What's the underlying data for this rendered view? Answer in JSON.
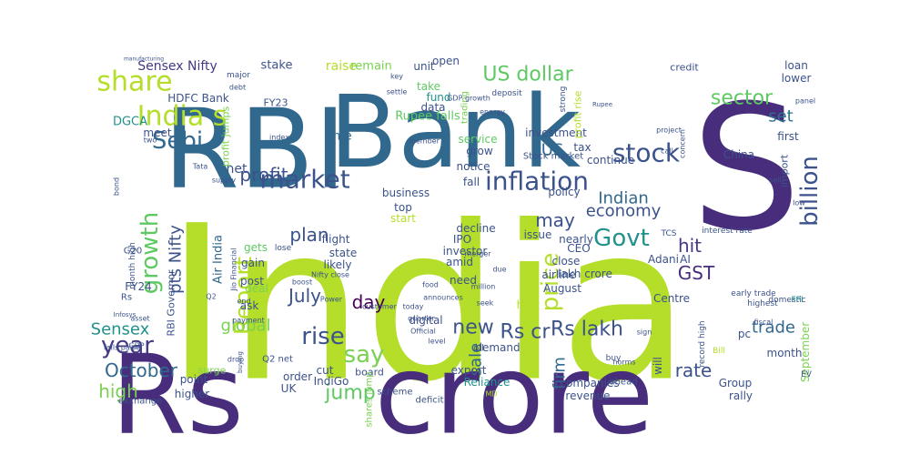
{
  "wordcloud": {
    "words": [
      {
        "text": "India",
        "color": "#b5de2b"
      },
      {
        "text": "S",
        "color": "#472d7b"
      },
      {
        "text": "crore",
        "color": "#472d7b"
      },
      {
        "text": "Rs",
        "color": "#472d7b"
      },
      {
        "text": "RBI",
        "color": "#31688e"
      },
      {
        "text": "Bank",
        "color": "#31688e"
      },
      {
        "text": "India s",
        "color": "#b5de2b"
      },
      {
        "text": "share",
        "color": "#b5de2b"
      },
      {
        "text": "market",
        "color": "#3b528b"
      },
      {
        "text": "stock",
        "color": "#3b528b"
      },
      {
        "text": "inflation",
        "color": "#3b528b"
      },
      {
        "text": "Sebi",
        "color": "#31688e"
      },
      {
        "text": "Report",
        "color": "#b5de2b"
      },
      {
        "text": "year",
        "color": "#443983"
      },
      {
        "text": "say",
        "color": "#7ad151"
      },
      {
        "text": "rise",
        "color": "#3b528b"
      },
      {
        "text": "Govt",
        "color": "#21918c"
      },
      {
        "text": "growth",
        "color": "#5ec962"
      },
      {
        "text": "price",
        "color": "#b5de2b"
      },
      {
        "text": "billion",
        "color": "#3b528b"
      },
      {
        "text": "US dollar",
        "color": "#5ec962"
      },
      {
        "text": "sector",
        "color": "#5ec962"
      },
      {
        "text": "profit",
        "color": "#3b528b"
      },
      {
        "text": "new",
        "color": "#3b528b"
      },
      {
        "text": "Rs cr",
        "color": "#3b528b"
      },
      {
        "text": "Rs lakh",
        "color": "#3b528b"
      },
      {
        "text": "jump",
        "color": "#5ec962"
      },
      {
        "text": "plan",
        "color": "#3b528b"
      },
      {
        "text": "July",
        "color": "#3b528b"
      },
      {
        "text": "day",
        "color": "#440154"
      },
      {
        "text": "global",
        "color": "#7ad151"
      },
      {
        "text": "Sensex",
        "color": "#21918c"
      },
      {
        "text": "October",
        "color": "#31688e"
      },
      {
        "text": "high",
        "color": "#7ad151"
      },
      {
        "text": "rate",
        "color": "#3b528b"
      },
      {
        "text": "trade",
        "color": "#31688e"
      },
      {
        "text": "may",
        "color": "#3b528b"
      },
      {
        "text": "economy",
        "color": "#3b528b"
      },
      {
        "text": "Indian",
        "color": "#31688e"
      },
      {
        "text": "hit",
        "color": "#443983"
      },
      {
        "text": "GST",
        "color": "#472d7b"
      },
      {
        "text": "pts Nifty",
        "color": "#3b528b"
      },
      {
        "text": "set",
        "color": "#2c728e"
      },
      {
        "text": "sale",
        "color": "#31688e"
      },
      {
        "text": "firm",
        "color": "#31688e"
      },
      {
        "text": "US",
        "color": "#31688e"
      },
      {
        "text": "net",
        "color": "#3b528b"
      },
      {
        "text": "Sensex Nifty",
        "color": "#443983"
      },
      {
        "text": "HDFC Bank",
        "color": "#3b528b"
      },
      {
        "text": "stake",
        "color": "#3b528b"
      },
      {
        "text": "raise",
        "color": "#b5de2b"
      },
      {
        "text": "remain",
        "color": "#7ad151"
      },
      {
        "text": "unit",
        "color": "#3b528b"
      },
      {
        "text": "open",
        "color": "#3b528b"
      },
      {
        "text": "credit",
        "color": "#3b528b"
      },
      {
        "text": "loan",
        "color": "#3b528b"
      },
      {
        "text": "lower",
        "color": "#3b528b"
      },
      {
        "text": "first",
        "color": "#3b528b"
      },
      {
        "text": "time",
        "color": "#31688e"
      },
      {
        "text": "fund",
        "color": "#21918c"
      },
      {
        "text": "data",
        "color": "#3b528b"
      },
      {
        "text": "take",
        "color": "#5ec962"
      },
      {
        "text": "service",
        "color": "#5ec962"
      },
      {
        "text": "investment",
        "color": "#3b528b"
      },
      {
        "text": "tax",
        "color": "#3b528b"
      },
      {
        "text": "continue",
        "color": "#3b528b"
      },
      {
        "text": "Rupee falls",
        "color": "#5ec962"
      },
      {
        "text": "grow",
        "color": "#3b528b"
      },
      {
        "text": "notice",
        "color": "#3b528b"
      },
      {
        "text": "fall",
        "color": "#3b528b"
      },
      {
        "text": "business",
        "color": "#3b528b"
      },
      {
        "text": "policy",
        "color": "#3b528b"
      },
      {
        "text": "China",
        "color": "#3b528b"
      },
      {
        "text": "import",
        "color": "#3b528b"
      },
      {
        "text": "meet",
        "color": "#3b528b"
      },
      {
        "text": "DGCA",
        "color": "#21918c"
      },
      {
        "text": "FY23",
        "color": "#3b528b"
      },
      {
        "text": "profit jumps",
        "color": "#7ad151"
      },
      {
        "text": "Air India",
        "color": "#31688e"
      },
      {
        "text": "RBI Governor",
        "color": "#3b528b"
      },
      {
        "text": "FY24",
        "color": "#3b528b"
      },
      {
        "text": "gets",
        "color": "#5ec962"
      },
      {
        "text": "gain",
        "color": "#3b528b"
      },
      {
        "text": "post",
        "color": "#3b528b"
      },
      {
        "text": "ask",
        "color": "#3b528b"
      },
      {
        "text": "deal",
        "color": "#7ad151"
      },
      {
        "text": "top",
        "color": "#3b528b"
      },
      {
        "text": "start",
        "color": "#b5de2b"
      },
      {
        "text": "decline",
        "color": "#3b528b"
      },
      {
        "text": "IPO",
        "color": "#3b528b"
      },
      {
        "text": "investor",
        "color": "#3b528b"
      },
      {
        "text": "amid",
        "color": "#3b528b"
      },
      {
        "text": "need",
        "color": "#3b528b"
      },
      {
        "text": "issue",
        "color": "#3b528b"
      },
      {
        "text": "nearly",
        "color": "#3b528b"
      },
      {
        "text": "CEO",
        "color": "#3b528b"
      },
      {
        "text": "close",
        "color": "#3b528b"
      },
      {
        "text": "airline",
        "color": "#3b528b"
      },
      {
        "text": "lakh crore",
        "color": "#3b528b"
      },
      {
        "text": "Adani",
        "color": "#3b528b"
      },
      {
        "text": "AI",
        "color": "#3b528b"
      },
      {
        "text": "August",
        "color": "#3b528b"
      },
      {
        "text": "hike",
        "color": "#b5de2b"
      },
      {
        "text": "Centre",
        "color": "#3b528b"
      },
      {
        "text": "Group",
        "color": "#3b528b"
      },
      {
        "text": "rally",
        "color": "#3b528b"
      },
      {
        "text": "month",
        "color": "#3b528b"
      },
      {
        "text": "September",
        "color": "#7ad151"
      },
      {
        "text": "pc",
        "color": "#3b528b"
      },
      {
        "text": "state",
        "color": "#3b528b"
      },
      {
        "text": "likely",
        "color": "#3b528b"
      },
      {
        "text": "flight",
        "color": "#3b528b"
      },
      {
        "text": "digital",
        "color": "#3b528b"
      },
      {
        "text": "demand",
        "color": "#3b528b"
      },
      {
        "text": "export",
        "color": "#3b528b"
      },
      {
        "text": "Reliance",
        "color": "#21918c"
      },
      {
        "text": "companies",
        "color": "#3b528b"
      },
      {
        "text": "revenue",
        "color": "#3b528b"
      },
      {
        "text": "will",
        "color": "#3b528b"
      },
      {
        "text": "cut",
        "color": "#3b528b"
      },
      {
        "text": "point",
        "color": "#3b528b"
      },
      {
        "text": "higher",
        "color": "#3b528b"
      },
      {
        "text": "order",
        "color": "#3b528b"
      },
      {
        "text": "IndiGo",
        "color": "#3b528b"
      },
      {
        "text": "UK",
        "color": "#3b528b"
      },
      {
        "text": "board",
        "color": "#3b528b"
      },
      {
        "text": "exchange",
        "color": "#3b528b"
      },
      {
        "text": "surge",
        "color": "#7ad151"
      },
      {
        "text": "Q2 net",
        "color": "#3b528b"
      },
      {
        "text": "shares jump",
        "color": "#7ad151"
      },
      {
        "text": "scheme",
        "color": "#3b528b"
      },
      {
        "text": "deficit",
        "color": "#3b528b"
      },
      {
        "text": "oil",
        "color": "#3b528b"
      },
      {
        "text": "ahead",
        "color": "#3b528b"
      },
      {
        "text": "buy",
        "color": "#3b528b"
      },
      {
        "text": "record high",
        "color": "#3b528b"
      },
      {
        "text": "Bill",
        "color": "#b5de2b"
      },
      {
        "text": "Stock market",
        "color": "#3b528b"
      },
      {
        "text": "profit rise",
        "color": "#b5de2b"
      },
      {
        "text": "trading",
        "color": "#7ad151"
      },
      {
        "text": "GDP growth",
        "color": "#3b528b"
      },
      {
        "text": "deposit",
        "color": "#3b528b"
      },
      {
        "text": "energy",
        "color": "#3b528b"
      },
      {
        "text": "member",
        "color": "#3b528b"
      },
      {
        "text": "strong",
        "color": "#3b528b"
      },
      {
        "text": "Rupee",
        "color": "#3b528b"
      },
      {
        "text": "project",
        "color": "#3b528b"
      },
      {
        "text": "call",
        "color": "#3b528b"
      },
      {
        "text": "concern",
        "color": "#3b528b"
      },
      {
        "text": "panel",
        "color": "#3b528b"
      },
      {
        "text": "sell",
        "color": "#3b528b"
      },
      {
        "text": "low",
        "color": "#3b528b"
      },
      {
        "text": "TCS",
        "color": "#3b528b"
      },
      {
        "text": "interest rate",
        "color": "#3b528b"
      },
      {
        "text": "merger",
        "color": "#3b528b"
      },
      {
        "text": "due",
        "color": "#3b528b"
      },
      {
        "text": "food",
        "color": "#3b528b"
      },
      {
        "text": "announces",
        "color": "#3b528b"
      },
      {
        "text": "Official",
        "color": "#3b528b"
      },
      {
        "text": "level",
        "color": "#3b528b"
      },
      {
        "text": "seek",
        "color": "#3b528b"
      },
      {
        "text": "million",
        "color": "#3b528b"
      },
      {
        "text": "today",
        "color": "#3b528b"
      },
      {
        "text": "quarter",
        "color": "#3b528b"
      },
      {
        "text": "customer",
        "color": "#3b528b"
      },
      {
        "text": "Power",
        "color": "#3b528b"
      },
      {
        "text": "payment",
        "color": "#3b528b"
      },
      {
        "text": "Nifty close",
        "color": "#3b528b"
      },
      {
        "text": "boost",
        "color": "#3b528b"
      },
      {
        "text": "supply",
        "color": "#3b528b"
      },
      {
        "text": "Tata",
        "color": "#3b528b"
      },
      {
        "text": "bond",
        "color": "#3b528b"
      },
      {
        "text": "G20",
        "color": "#3b528b"
      },
      {
        "text": "month high",
        "color": "#3b528b"
      },
      {
        "text": "Q2",
        "color": "#3b528b"
      },
      {
        "text": "end",
        "color": "#3b528b"
      },
      {
        "text": "Rs",
        "color": "#3b528b"
      },
      {
        "text": "lose",
        "color": "#3b528b"
      },
      {
        "text": "Infosys",
        "color": "#3b528b"
      },
      {
        "text": "asset",
        "color": "#3b528b"
      },
      {
        "text": "GDP",
        "color": "#3b528b"
      },
      {
        "text": "falls paise",
        "color": "#3b528b"
      },
      {
        "text": "drop",
        "color": "#3b528b"
      },
      {
        "text": "buying",
        "color": "#3b528b"
      },
      {
        "text": "MD",
        "color": "#b5de2b"
      },
      {
        "text": "norms",
        "color": "#3b528b"
      },
      {
        "text": "sign",
        "color": "#3b528b"
      },
      {
        "text": "fiscal",
        "color": "#3b528b"
      },
      {
        "text": "highest",
        "color": "#3b528b"
      },
      {
        "text": "early trade",
        "color": "#3b528b"
      },
      {
        "text": "domestic",
        "color": "#3b528b"
      },
      {
        "text": "FPI",
        "color": "#21918c"
      },
      {
        "text": "EV",
        "color": "#3b528b"
      },
      {
        "text": "manufacturing",
        "color": "#3b528b"
      },
      {
        "text": "major",
        "color": "#3b528b"
      },
      {
        "text": "debt",
        "color": "#3b528b"
      },
      {
        "text": "key",
        "color": "#3b528b"
      },
      {
        "text": "settle",
        "color": "#3b528b"
      },
      {
        "text": "two",
        "color": "#3b528b"
      },
      {
        "text": "index",
        "color": "#3b528b"
      },
      {
        "text": "Jio Financial",
        "color": "#3b528b"
      }
    ]
  }
}
